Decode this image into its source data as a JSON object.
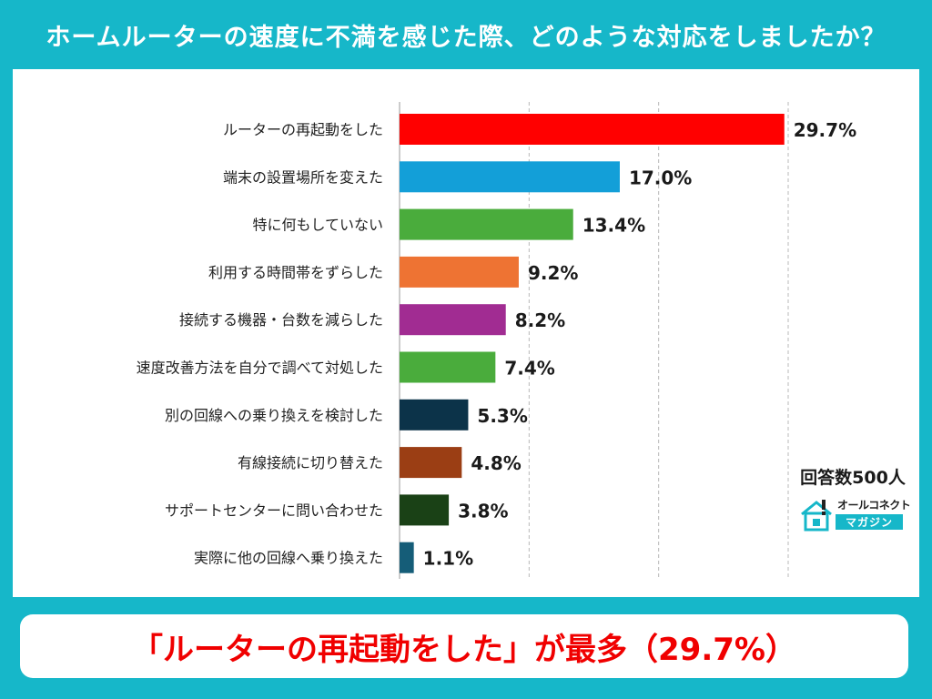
{
  "header": {
    "title": "ホームルーターの速度に不満を感じた際、どのような対応をしましたか？"
  },
  "chart_data": {
    "type": "bar",
    "orientation": "horizontal",
    "title": "ホームルーターの速度に不満を感じた際、どのような対応をしましたか？",
    "categories": [
      "ルーターの再起動をした",
      "端末の設置場所を変えた",
      "特に何もしていない",
      "利用する時間帯をずらした",
      "接続する機器・台数を減らした",
      "速度改善方法を自分で調べて対処した",
      "別の回線への乗り換えを検討した",
      "有線接続に切り替えた",
      "サポートセンターに問い合わせた",
      "実際に他の回線へ乗り換えた"
    ],
    "values": [
      29.7,
      17.0,
      13.4,
      9.2,
      8.2,
      7.4,
      5.3,
      4.8,
      3.8,
      1.1
    ],
    "value_labels": [
      "29.7%",
      "17.0%",
      "13.4%",
      "9.2%",
      "8.2%",
      "7.4%",
      "5.3%",
      "4.8%",
      "3.8%",
      "1.1%"
    ],
    "colors": [
      "#ff0000",
      "#139fd8",
      "#4aac3c",
      "#ee7333",
      "#a12c92",
      "#4aac3c",
      "#0c3349",
      "#9b3e14",
      "#1a4116",
      "#155d78"
    ],
    "xlim": [
      0,
      30
    ],
    "x_ticks": [
      "0%",
      "10%",
      "20%",
      "30%"
    ],
    "grid": "vertical-dashed",
    "xlabel": "",
    "ylabel": ""
  },
  "note": {
    "respondents": "回答数500人"
  },
  "logo": {
    "name": "オールコネクト",
    "sub": "マガジン"
  },
  "conclusion": {
    "text": "「ルーターの再起動をした」が最多（29.7%）"
  }
}
